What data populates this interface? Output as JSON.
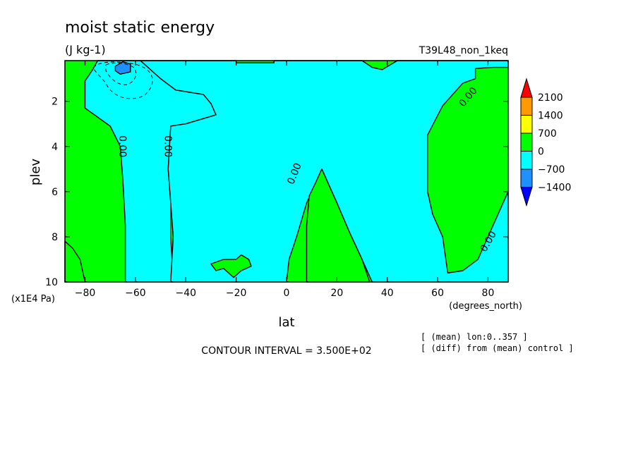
{
  "chart_data": {
    "type": "heatmap",
    "title": "moist static energy",
    "subtitle": "(J kg-1)",
    "run_label": "T39L48_non_1keq",
    "xlabel": "lat",
    "x_units": "(degrees_north)",
    "ylabel": "plev",
    "y_units": "(x1E4 Pa)",
    "xlim": [
      -88,
      88
    ],
    "ylim": [
      10,
      0.2
    ],
    "x_ticks": [
      -80,
      -60,
      -40,
      -20,
      0,
      20,
      40,
      60,
      80
    ],
    "y_ticks": [
      2,
      4,
      6,
      8,
      10
    ],
    "contour_interval_text": "CONTOUR INTERVAL = 3.500E+02",
    "notes": [
      "[ (mean) lon:0..357 ]",
      "[ (diff) from (mean) control ]"
    ],
    "contour_labels": [
      "0.00",
      "0.00",
      "0.00",
      "0.00",
      "0.00"
    ],
    "legend": {
      "levels": [
        2100,
        1400,
        700,
        0,
        -700,
        -1400
      ],
      "colors": [
        "#ff0000",
        "#ff9900",
        "#ffff00",
        "#00ff00",
        "#00ffff",
        "#1e90ff",
        "#0000ff"
      ]
    },
    "regions": [
      {
        "class": "negative",
        "color": "#00ffff",
        "points": [
          [
            -75,
            0.2
          ],
          [
            -58,
            0.2
          ],
          [
            -55,
            0.5
          ],
          [
            -50,
            1.0
          ],
          [
            -44,
            1.5
          ],
          [
            -33,
            1.7
          ],
          [
            -30,
            2.1
          ],
          [
            -28,
            2.6
          ],
          [
            -40,
            3.0
          ],
          [
            -46,
            3.1
          ],
          [
            -47,
            5.0
          ],
          [
            -46,
            6.5
          ],
          [
            -46,
            8.0
          ],
          [
            -45,
            10
          ],
          [
            -64,
            10
          ],
          [
            -64,
            7.5
          ],
          [
            -65,
            5.5
          ],
          [
            -66,
            4.0
          ],
          [
            -70,
            3.1
          ],
          [
            -80,
            2.3
          ],
          [
            -80,
            1.1
          ],
          [
            -77,
            0.6
          ]
        ]
      },
      {
        "class": "negative",
        "color": "#00ffff",
        "points": [
          [
            44,
            0.2
          ],
          [
            88,
            0.2
          ],
          [
            88,
            0.5
          ],
          [
            82,
            0.5
          ],
          [
            75,
            0.55
          ],
          [
            75,
            1.0
          ],
          [
            70,
            1.2
          ],
          [
            62,
            2.2
          ],
          [
            56,
            3.5
          ],
          [
            56,
            6.0
          ],
          [
            58,
            7.0
          ],
          [
            62,
            8.0
          ],
          [
            64,
            9.6
          ],
          [
            70,
            9.5
          ],
          [
            76,
            9.0
          ],
          [
            82,
            7.5
          ],
          [
            86,
            6.5
          ],
          [
            88,
            6.0
          ],
          [
            88,
            10
          ],
          [
            34,
            10
          ],
          [
            30,
            9.0
          ],
          [
            25,
            7.8
          ],
          [
            20,
            6.5
          ],
          [
            16,
            5.5
          ],
          [
            14,
            5.0
          ],
          [
            8,
            6.5
          ],
          [
            4,
            8.0
          ],
          [
            1,
            9.0
          ],
          [
            0,
            10
          ],
          [
            -46,
            10
          ],
          [
            -45,
            8.0
          ],
          [
            -46,
            6.5
          ],
          [
            -47,
            5.0
          ],
          [
            -46,
            3.1
          ],
          [
            -40,
            3.0
          ],
          [
            -28,
            2.6
          ],
          [
            -30,
            2.1
          ],
          [
            -33,
            1.7
          ],
          [
            -44,
            1.5
          ],
          [
            -50,
            1.0
          ],
          [
            -55,
            0.5
          ],
          [
            -58,
            0.2
          ],
          [
            -20,
            0.2
          ],
          [
            -20,
            0.3
          ],
          [
            -5,
            0.3
          ],
          [
            -5,
            0.2
          ],
          [
            30,
            0.2
          ],
          [
            34,
            0.5
          ],
          [
            38,
            0.6
          ]
        ]
      },
      {
        "class": "positive",
        "color": "#00ff00",
        "points": [
          [
            -30,
            9.2
          ],
          [
            -25,
            9.0
          ],
          [
            -20,
            9.0
          ],
          [
            -18,
            8.8
          ],
          [
            -15,
            9.0
          ],
          [
            -14,
            9.3
          ],
          [
            -18,
            9.5
          ],
          [
            -21,
            9.8
          ],
          [
            -25,
            9.4
          ],
          [
            -28,
            9.5
          ]
        ]
      },
      {
        "class": "positive",
        "color": "#00ff00",
        "points": [
          [
            -88,
            8.2
          ],
          [
            -85,
            8.5
          ],
          [
            -82,
            9.0
          ],
          [
            -80,
            10
          ],
          [
            -88,
            10
          ]
        ]
      },
      {
        "class": "positive",
        "color": "#00ff00",
        "points": [
          [
            9,
            6.2
          ],
          [
            12,
            5.5
          ],
          [
            14,
            5.0
          ],
          [
            16,
            5.5
          ],
          [
            20,
            6.5
          ],
          [
            25,
            7.8
          ],
          [
            30,
            9.0
          ],
          [
            33,
            10
          ],
          [
            8,
            10
          ],
          [
            8,
            9.0
          ],
          [
            8,
            7.5
          ]
        ]
      },
      {
        "class": "negative",
        "color": "#1e90ff",
        "points": [
          [
            -68,
            0.45
          ],
          [
            -65,
            0.25
          ],
          [
            -62,
            0.35
          ],
          [
            -62,
            0.7
          ],
          [
            -66,
            0.8
          ],
          [
            -68,
            0.65
          ]
        ]
      }
    ]
  }
}
